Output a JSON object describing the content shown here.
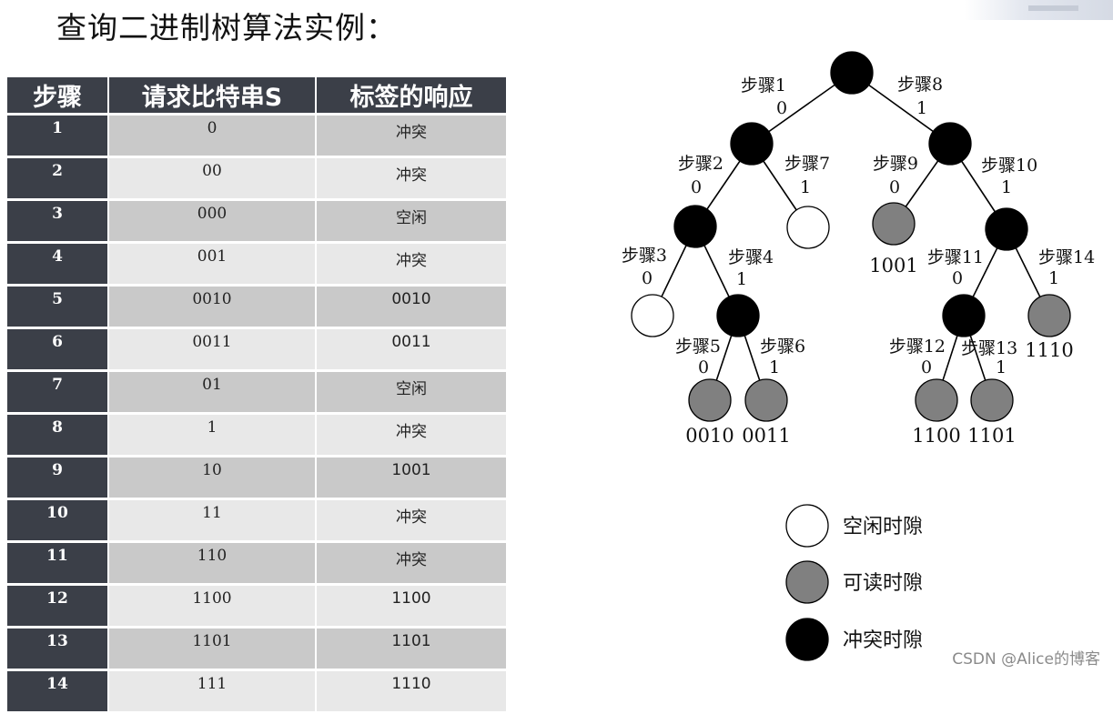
{
  "title": "查询二进制树算法实例：",
  "watermark": "CSDN @Alice的博客",
  "table": {
    "headers": [
      "步骤",
      "请求比特串S",
      "标签的响应"
    ],
    "rows": [
      {
        "step": "1",
        "bits": "0",
        "response": "冲突"
      },
      {
        "step": "2",
        "bits": "00",
        "response": "冲突"
      },
      {
        "step": "3",
        "bits": "000",
        "response": "空闲"
      },
      {
        "step": "4",
        "bits": "001",
        "response": "冲突"
      },
      {
        "step": "5",
        "bits": "0010",
        "response": "0010"
      },
      {
        "step": "6",
        "bits": "0011",
        "response": "0011"
      },
      {
        "step": "7",
        "bits": "01",
        "response": "空闲"
      },
      {
        "step": "8",
        "bits": "1",
        "response": "冲突"
      },
      {
        "step": "9",
        "bits": "10",
        "response": "1001"
      },
      {
        "step": "10",
        "bits": "11",
        "response": "冲突"
      },
      {
        "step": "11",
        "bits": "110",
        "response": "冲突"
      },
      {
        "step": "12",
        "bits": "1100",
        "response": "1100"
      },
      {
        "step": "13",
        "bits": "1101",
        "response": "1101"
      },
      {
        "step": "14",
        "bits": "111",
        "response": "1110"
      }
    ]
  },
  "tree": {
    "colors": {
      "collision": "#000000",
      "readable": "#808080",
      "idle": "#ffffff"
    },
    "nodes": [
      {
        "id": "root",
        "type": "collision"
      },
      {
        "id": "n0",
        "type": "collision"
      },
      {
        "id": "n1",
        "type": "collision"
      },
      {
        "id": "n00",
        "type": "collision"
      },
      {
        "id": "n01",
        "type": "idle"
      },
      {
        "id": "n10",
        "type": "readable",
        "label": "1001"
      },
      {
        "id": "n11",
        "type": "collision"
      },
      {
        "id": "n000",
        "type": "idle"
      },
      {
        "id": "n001",
        "type": "collision"
      },
      {
        "id": "n110",
        "type": "collision"
      },
      {
        "id": "n111",
        "type": "readable",
        "label": "1110"
      },
      {
        "id": "n0010",
        "type": "readable",
        "label": "0010"
      },
      {
        "id": "n0011",
        "type": "readable",
        "label": "0011"
      },
      {
        "id": "n1100",
        "type": "readable",
        "label": "1100"
      },
      {
        "id": "n1101",
        "type": "readable",
        "label": "1101"
      }
    ],
    "edges": [
      {
        "from": "root",
        "to": "n0",
        "step": "步骤1",
        "bit": "0"
      },
      {
        "from": "root",
        "to": "n1",
        "step": "步骤8",
        "bit": "1"
      },
      {
        "from": "n0",
        "to": "n00",
        "step": "步骤2",
        "bit": "0"
      },
      {
        "from": "n0",
        "to": "n01",
        "step": "步骤7",
        "bit": "1"
      },
      {
        "from": "n1",
        "to": "n10",
        "step": "步骤9",
        "bit": "0"
      },
      {
        "from": "n1",
        "to": "n11",
        "step": "步骤10",
        "bit": "1"
      },
      {
        "from": "n00",
        "to": "n000",
        "step": "步骤3",
        "bit": "0"
      },
      {
        "from": "n00",
        "to": "n001",
        "step": "步骤4",
        "bit": "1"
      },
      {
        "from": "n11",
        "to": "n110",
        "step": "步骤11",
        "bit": "0"
      },
      {
        "from": "n11",
        "to": "n111",
        "step": "步骤14",
        "bit": "1"
      },
      {
        "from": "n001",
        "to": "n0010",
        "step": "步骤5",
        "bit": "0"
      },
      {
        "from": "n001",
        "to": "n0011",
        "step": "步骤6",
        "bit": "1"
      },
      {
        "from": "n110",
        "to": "n1100",
        "step": "步骤12",
        "bit": "0"
      },
      {
        "from": "n110",
        "to": "n1101",
        "step": "步骤13",
        "bit": "1"
      }
    ]
  },
  "legend": [
    {
      "type": "idle",
      "label": "空闲时隙"
    },
    {
      "type": "readable",
      "label": "可读时隙"
    },
    {
      "type": "collision",
      "label": "冲突时隙"
    }
  ]
}
